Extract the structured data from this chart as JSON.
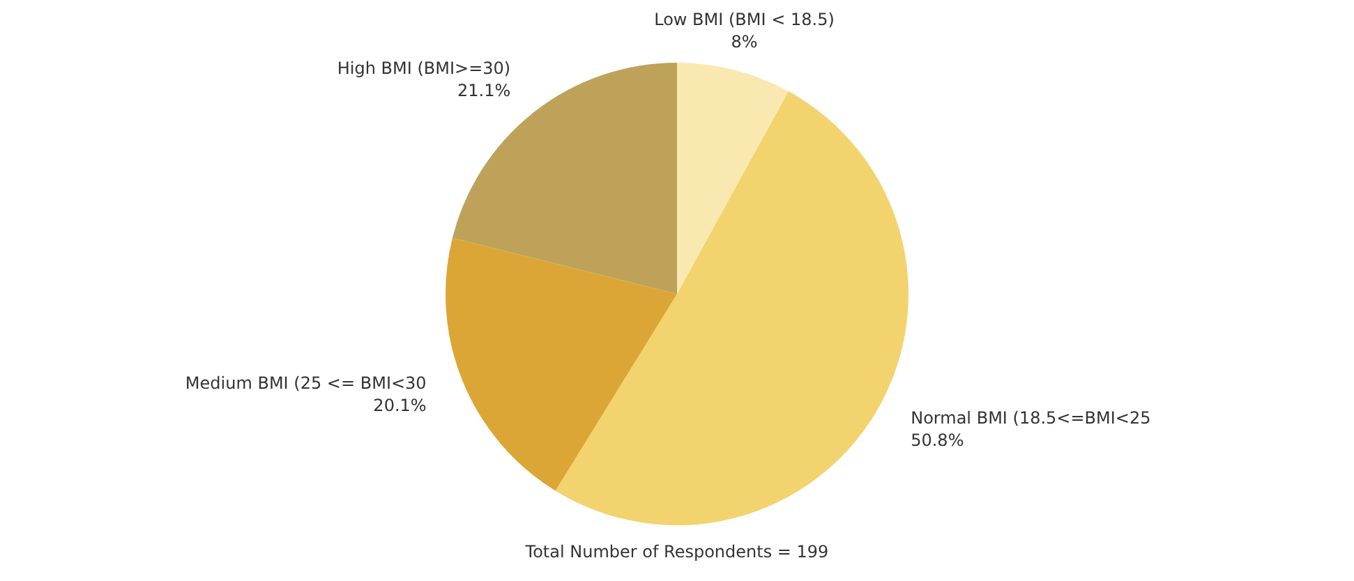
{
  "chart_data": {
    "type": "pie",
    "categories": [
      "Low BMI (BMI < 18.5)",
      "Normal BMI (18.5<=BMI<25",
      "Medium BMI (25 <= BMI<30",
      "High BMI (BMI>=30)"
    ],
    "values": [
      8,
      50.8,
      20.1,
      21.1
    ],
    "value_labels": [
      "8%",
      "50.8%",
      "20.1%",
      "21.1%"
    ],
    "colors": [
      "#f9e9b0",
      "#f3d36e",
      "#dca636",
      "#bfa25a"
    ],
    "annotations": [
      "Total Number of Respondents = 199"
    ]
  }
}
